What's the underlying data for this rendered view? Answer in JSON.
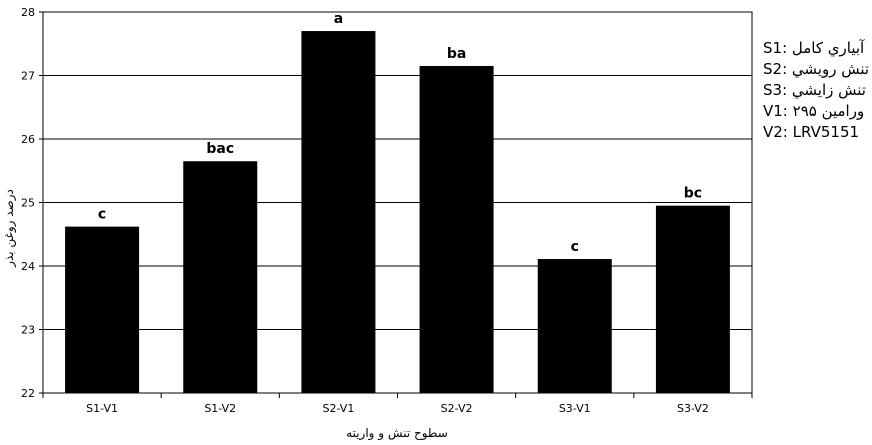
{
  "chart_data": {
    "type": "bar",
    "title": "",
    "xlabel": "سطوح تنش و واريته",
    "ylabel": "درصد روغن بذر",
    "ylim": [
      22,
      28
    ],
    "yticks": [
      22,
      23,
      24,
      25,
      26,
      27,
      28
    ],
    "grid": true,
    "categories": [
      "S1-V1",
      "S1-V2",
      "S2-V1",
      "S2-V2",
      "S3-V1",
      "S3-V2"
    ],
    "values": [
      24.62,
      25.65,
      27.7,
      27.15,
      24.11,
      24.95
    ],
    "annotations": [
      "c",
      "bac",
      "a",
      "ba",
      "c",
      "bc"
    ],
    "bar_color": "#000000"
  },
  "legend": [
    {
      "code": "S1:",
      "desc": "آبياري كامل"
    },
    {
      "code": "S2:",
      "desc": "تنش رويشي"
    },
    {
      "code": "S3:",
      "desc": "تنش زايشي"
    },
    {
      "code": "V1:",
      "desc": "ورامين ۲۹۵"
    },
    {
      "code": "V2:",
      "desc": "LRV5151"
    }
  ]
}
